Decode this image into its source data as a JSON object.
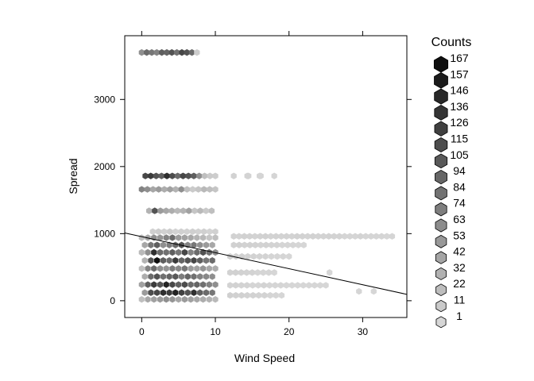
{
  "chart_data": {
    "type": "hexbin",
    "xlabel": "Wind Speed",
    "ylabel": "Spread",
    "xlim": [
      -2.3,
      36
    ],
    "ylim": [
      -250,
      3950
    ],
    "x_ticks": [
      0,
      10,
      20,
      30
    ],
    "y_ticks": [
      0,
      1000,
      2000,
      3000
    ],
    "grid": false,
    "legend": {
      "title": "Counts",
      "position": "right",
      "entries": [
        167,
        157,
        146,
        136,
        126,
        115,
        105,
        94,
        84,
        74,
        63,
        53,
        42,
        32,
        22,
        11,
        1
      ]
    },
    "regression_line": {
      "x": [
        -2.3,
        36
      ],
      "y": [
        1010,
        95
      ]
    },
    "strips": [
      {
        "y": 3700,
        "x_from": 0,
        "x_to": 7.5,
        "counts": [
          60,
          90,
          80,
          70,
          100,
          95,
          110,
          85,
          120,
          110,
          90,
          8
        ]
      },
      {
        "y": 1860,
        "x_from": 0.5,
        "x_to": 10,
        "counts": [
          120,
          130,
          110,
          100,
          140,
          115,
          90,
          120,
          110,
          100,
          60,
          20,
          10,
          8
        ]
      },
      {
        "y": 1860,
        "x_from": 12.5,
        "x_to": 18,
        "counts": [
          4,
          3,
          3,
          2
        ]
      },
      {
        "y": 1660,
        "x_from": 0,
        "x_to": 10,
        "counts": [
          70,
          60,
          40,
          50,
          35,
          45,
          30,
          60,
          20,
          10,
          15,
          25,
          20,
          15
        ]
      },
      {
        "y": 1340,
        "x_from": 1,
        "x_to": 9.5,
        "counts": [
          30,
          110,
          50,
          40,
          35,
          25,
          30,
          45,
          15,
          25,
          12,
          20
        ]
      },
      {
        "y": 1030,
        "x_from": 1.5,
        "x_to": 10,
        "counts": [
          6,
          8,
          5,
          9,
          4,
          6,
          5,
          7,
          4,
          6,
          3,
          5
        ]
      },
      {
        "y": 960,
        "x_from": 12.5,
        "x_to": 34,
        "counts": [
          4,
          3,
          5,
          4,
          3,
          4,
          5,
          3,
          4,
          3,
          4,
          3,
          5,
          4,
          3,
          4,
          3,
          3,
          4,
          3,
          3,
          2,
          2,
          2,
          3,
          2,
          2,
          2,
          2,
          1,
          2
        ]
      },
      {
        "y": 830,
        "x_from": 12.5,
        "x_to": 22,
        "counts": [
          5,
          6,
          4,
          5,
          4,
          3,
          4,
          3,
          3,
          2,
          2,
          2,
          1,
          1
        ]
      },
      {
        "y": 660,
        "x_from": 12,
        "x_to": 20,
        "counts": [
          6,
          5,
          5,
          4,
          4,
          3,
          3,
          2,
          2,
          2,
          1
        ]
      },
      {
        "y": 420,
        "x_from": 12,
        "x_to": 18,
        "counts": [
          4,
          5,
          4,
          3,
          3,
          2,
          2,
          2,
          1
        ]
      },
      {
        "y": 230,
        "x_from": 12,
        "x_to": 25,
        "counts": [
          3,
          4,
          3,
          3,
          2,
          2,
          3,
          2,
          2,
          2,
          1,
          1,
          1,
          1,
          1,
          1,
          1,
          1
        ]
      },
      {
        "y": 80,
        "x_from": 12,
        "x_to": 19,
        "counts": [
          6,
          5,
          5,
          4,
          4,
          3,
          3,
          2,
          2,
          1
        ]
      }
    ],
    "isolated": [
      {
        "x": 14.5,
        "y": 1860,
        "count": 3
      },
      {
        "x": 16,
        "y": 1860,
        "count": 2
      },
      {
        "x": 25.5,
        "y": 420,
        "count": 1
      },
      {
        "x": 29.5,
        "y": 140,
        "count": 2
      },
      {
        "x": 31.5,
        "y": 140,
        "count": 1
      }
    ],
    "dense_block": {
      "x_from": 0,
      "x_to": 10,
      "y_values": [
        940,
        830,
        720,
        600,
        480,
        360,
        240,
        120,
        20
      ],
      "counts": [
        [
          20,
          40,
          60,
          55,
          70,
          90,
          50,
          45,
          40,
          30,
          25,
          15,
          20
        ],
        [
          40,
          80,
          100,
          60,
          75,
          90,
          110,
          70,
          80,
          60,
          50,
          40,
          30
        ],
        [
          25,
          60,
          140,
          90,
          85,
          100,
          80,
          120,
          70,
          90,
          110,
          85,
          60
        ],
        [
          30,
          110,
          167,
          100,
          90,
          130,
          95,
          110,
          120,
          100,
          80,
          90,
          110
        ],
        [
          20,
          70,
          90,
          60,
          55,
          75,
          65,
          80,
          50,
          45,
          55,
          40,
          35
        ],
        [
          35,
          90,
          110,
          85,
          95,
          105,
          75,
          95,
          85,
          70,
          65,
          60,
          55
        ],
        [
          45,
          100,
          130,
          110,
          150,
          120,
          100,
          115,
          90,
          95,
          85,
          70,
          60
        ],
        [
          50,
          115,
          120,
          140,
          130,
          150,
          125,
          110,
          140,
          100,
          90,
          80,
          70
        ],
        [
          20,
          40,
          45,
          50,
          60,
          55,
          40,
          50,
          45,
          40,
          35,
          30,
          25
        ]
      ]
    }
  }
}
